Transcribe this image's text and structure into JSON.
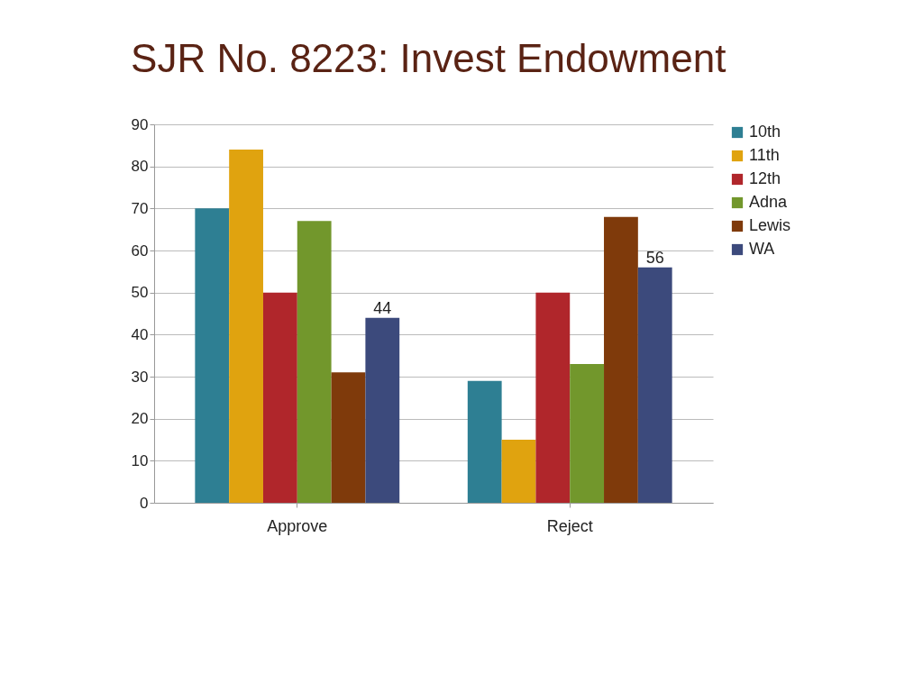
{
  "chart_data": {
    "type": "bar",
    "title": "SJR No. 8223: Invest Endowment",
    "categories": [
      "Approve",
      "Reject"
    ],
    "series": [
      {
        "name": "10th",
        "color": "#2e7f93",
        "values": [
          70,
          29
        ]
      },
      {
        "name": "11th",
        "color": "#e0a30f",
        "values": [
          84,
          15
        ]
      },
      {
        "name": "12th",
        "color": "#b0262b",
        "values": [
          50,
          50
        ]
      },
      {
        "name": "Adna",
        "color": "#72972c",
        "values": [
          67,
          33
        ]
      },
      {
        "name": "Lewis",
        "color": "#7f3a0b",
        "values": [
          31,
          68
        ]
      },
      {
        "name": "WA",
        "color": "#3c4a7c",
        "values": [
          44,
          56
        ],
        "value_labels": [
          "44",
          "56"
        ]
      }
    ],
    "ylim": [
      0,
      90
    ],
    "yticks": [
      0,
      10,
      20,
      30,
      40,
      50,
      60,
      70,
      80,
      90
    ],
    "grid": "y",
    "legend": "right"
  }
}
